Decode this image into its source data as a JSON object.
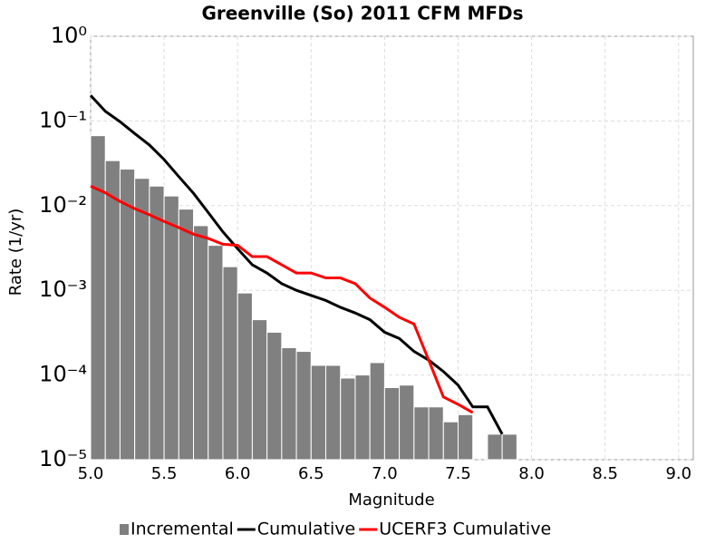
{
  "chart_data": {
    "type": "combo",
    "title": "Greenville (So) 2011 CFM MFDs",
    "x_label": "Magnitude",
    "y_label": "Rate (1/yr)",
    "xlim": [
      5.0,
      9.1
    ],
    "xticks": [
      {
        "value": 5,
        "label": "5.0"
      },
      5.5,
      {
        "value": 6,
        "label": "6.0"
      },
      6.5,
      {
        "value": 7,
        "label": "7.0"
      },
      7.5,
      {
        "value": 8,
        "label": "8.0"
      },
      8.5,
      {
        "value": 9,
        "label": "9.0"
      }
    ],
    "ylim": [
      1e-05,
      1
    ],
    "y_scale": "log",
    "yticks": [
      {
        "value": 1e-05,
        "label": "10⁻⁵"
      },
      {
        "value": 0.0001,
        "label": "10⁻⁴"
      },
      {
        "value": 0.001,
        "label": "10⁻³"
      },
      {
        "value": 0.01,
        "label": "10⁻²"
      },
      {
        "value": 0.1,
        "label": "10⁻¹"
      },
      {
        "value": 1,
        "label": "10⁰"
      }
    ],
    "grid": true,
    "series": [
      {
        "name": "Incremental",
        "type": "bar",
        "color": "#808080",
        "x": [
          5.05,
          5.15,
          5.25,
          5.35,
          5.45,
          5.55,
          5.65,
          5.75,
          5.85,
          5.95,
          6.05,
          6.15,
          6.25,
          6.35,
          6.45,
          6.55,
          6.65,
          6.75,
          6.85,
          6.95,
          7.05,
          7.15,
          7.25,
          7.35,
          7.45,
          7.55,
          7.75,
          7.85
        ],
        "values": [
          0.067,
          0.034,
          0.027,
          0.021,
          0.017,
          0.013,
          0.0091,
          0.0058,
          0.0034,
          0.0019,
          0.00093,
          0.00045,
          0.00032,
          0.00021,
          0.00019,
          0.00013,
          0.00013,
          9.2e-05,
          0.0001,
          0.00014,
          7.1e-05,
          7.6e-05,
          4.2e-05,
          4.2e-05,
          2.8e-05,
          3.4e-05,
          2e-05,
          2e-05
        ]
      },
      {
        "name": "Cumulative",
        "type": "line",
        "color": "#000000",
        "x": [
          5.0,
          5.1,
          5.2,
          5.3,
          5.4,
          5.5,
          5.6,
          5.7,
          5.8,
          5.9,
          6.0,
          6.1,
          6.2,
          6.3,
          6.4,
          6.5,
          6.6,
          6.7,
          6.8,
          6.9,
          7.0,
          7.1,
          7.2,
          7.3,
          7.4,
          7.5,
          7.6,
          7.7,
          7.8
        ],
        "values": [
          0.2,
          0.13,
          0.098,
          0.071,
          0.052,
          0.035,
          0.022,
          0.014,
          0.0083,
          0.0049,
          0.0031,
          0.002,
          0.0016,
          0.0012,
          0.001,
          0.00087,
          0.00076,
          0.00063,
          0.00054,
          0.00045,
          0.00032,
          0.00027,
          0.00019,
          0.00015,
          0.00011,
          7.6e-05,
          4.2e-05,
          4.2e-05,
          2e-05
        ]
      },
      {
        "name": "UCERF3 Cumulative",
        "type": "line",
        "color": "#ff0000",
        "x": [
          5.0,
          5.1,
          5.2,
          5.3,
          5.4,
          5.5,
          5.6,
          5.7,
          5.8,
          5.9,
          6.0,
          6.1,
          6.2,
          6.3,
          6.4,
          6.5,
          6.6,
          6.7,
          6.8,
          6.9,
          7.0,
          7.1,
          7.2,
          7.3,
          7.4,
          7.5,
          7.6
        ],
        "values": [
          0.017,
          0.0142,
          0.0112,
          0.0092,
          0.0078,
          0.0065,
          0.0055,
          0.0046,
          0.0041,
          0.0035,
          0.0034,
          0.0025,
          0.0025,
          0.002,
          0.0016,
          0.0016,
          0.0014,
          0.0014,
          0.0012,
          0.00081,
          0.00063,
          0.00048,
          0.0004,
          0.00015,
          5.5e-05,
          4.5e-05,
          3.6e-05
        ]
      }
    ]
  }
}
